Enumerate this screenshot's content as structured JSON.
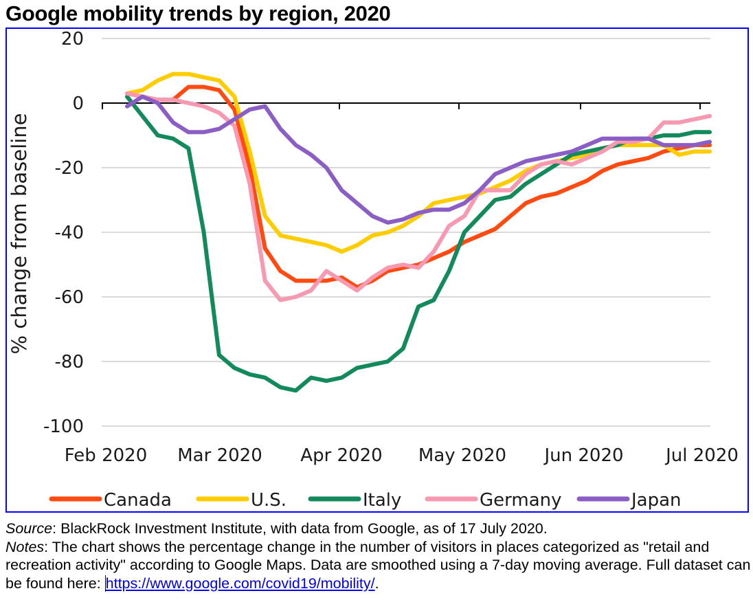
{
  "chart_data": {
    "type": "line",
    "title": "Google mobility trends by region, 2020",
    "xlabel": "",
    "ylabel": "% change from baseline",
    "ylim": [
      -100,
      20
    ],
    "yticks": [
      20,
      0,
      -20,
      -40,
      -60,
      -80,
      -100
    ],
    "ytick_labels": [
      "20",
      "0",
      "-20",
      "-40",
      "-60",
      "-80",
      "-100"
    ],
    "xtick_labels": [
      "Feb 2020",
      "Mar 2020",
      "Apr 2020",
      "May 2020",
      "Jun 2020",
      "Jul 2020"
    ],
    "x_unit": "days since 15 Feb 2020",
    "x": [
      0,
      4,
      8,
      12,
      16,
      20,
      24,
      28,
      32,
      36,
      40,
      44,
      48,
      52,
      56,
      60,
      64,
      68,
      72,
      76,
      80,
      84,
      88,
      92,
      96,
      100,
      104,
      108,
      112,
      116,
      120,
      124,
      128,
      132,
      136,
      140,
      144,
      148,
      152
    ],
    "grid": true,
    "legend_position": "bottom",
    "series": [
      {
        "name": "Canada",
        "color": "#ff4a12",
        "values": [
          3,
          2,
          1,
          1,
          5,
          5,
          4,
          -2,
          -20,
          -45,
          -52,
          -55,
          -55,
          -55,
          -54,
          -57,
          -55,
          -52,
          -51,
          -50,
          -48,
          -46,
          -43,
          -41,
          -39,
          -35,
          -31,
          -29,
          -28,
          -26,
          -24,
          -21,
          -19,
          -18,
          -17,
          -15,
          -14,
          -13,
          -13
        ]
      },
      {
        "name": "U.S.",
        "color": "#ffcc00",
        "values": [
          3,
          4,
          7,
          9,
          9,
          8,
          7,
          2,
          -15,
          -35,
          -41,
          -42,
          -43,
          -44,
          -46,
          -44,
          -41,
          -40,
          -38,
          -35,
          -31,
          -30,
          -29,
          -28,
          -26,
          -24,
          -21,
          -19,
          -18,
          -17,
          -16,
          -14,
          -13,
          -13,
          -13,
          -13,
          -16,
          -15,
          -15
        ]
      },
      {
        "name": "Italy",
        "color": "#138a5b",
        "values": [
          2,
          -4,
          -10,
          -11,
          -14,
          -40,
          -78,
          -82,
          -84,
          -85,
          -88,
          -89,
          -85,
          -86,
          -85,
          -82,
          -81,
          -80,
          -76,
          -63,
          -61,
          -52,
          -40,
          -35,
          -30,
          -29,
          -25,
          -22,
          -19,
          -16,
          -15,
          -14,
          -13,
          -11,
          -11,
          -10,
          -10,
          -9,
          -9
        ]
      },
      {
        "name": "Germany",
        "color": "#f799b0",
        "values": [
          3,
          2,
          1,
          1,
          0,
          -1,
          -3,
          -7,
          -25,
          -55,
          -61,
          -60,
          -58,
          -52,
          -55,
          -58,
          -54,
          -51,
          -50,
          -51,
          -46,
          -38,
          -35,
          -27,
          -27,
          -27,
          -22,
          -19,
          -18,
          -19,
          -17,
          -15,
          -12,
          -12,
          -11,
          -6,
          -6,
          -5,
          -4
        ]
      },
      {
        "name": "Japan",
        "color": "#8b5ec6",
        "values": [
          -1,
          2,
          0,
          -6,
          -9,
          -9,
          -8,
          -5,
          -2,
          -1,
          -8,
          -13,
          -16,
          -20,
          -27,
          -31,
          -35,
          -37,
          -36,
          -34,
          -33,
          -33,
          -31,
          -27,
          -22,
          -20,
          -18,
          -17,
          -16,
          -15,
          -13,
          -11,
          -11,
          -11,
          -11,
          -13,
          -13,
          -13,
          -12
        ]
      }
    ]
  },
  "footer": {
    "source_label": "Source",
    "source_text": ": BlackRock Investment Institute, with data from Google, as of 17 July 2020.",
    "notes_label": "Notes",
    "notes_text": ": The chart shows the percentage change in the number of visitors in places categorized as \"retail and recreation activity\" according to Google Maps. Data are smoothed using a 7-day moving average. Full dataset can be found here: ",
    "link_text": "https://www.google.com/covid19/mobility/",
    "trailing": "."
  }
}
